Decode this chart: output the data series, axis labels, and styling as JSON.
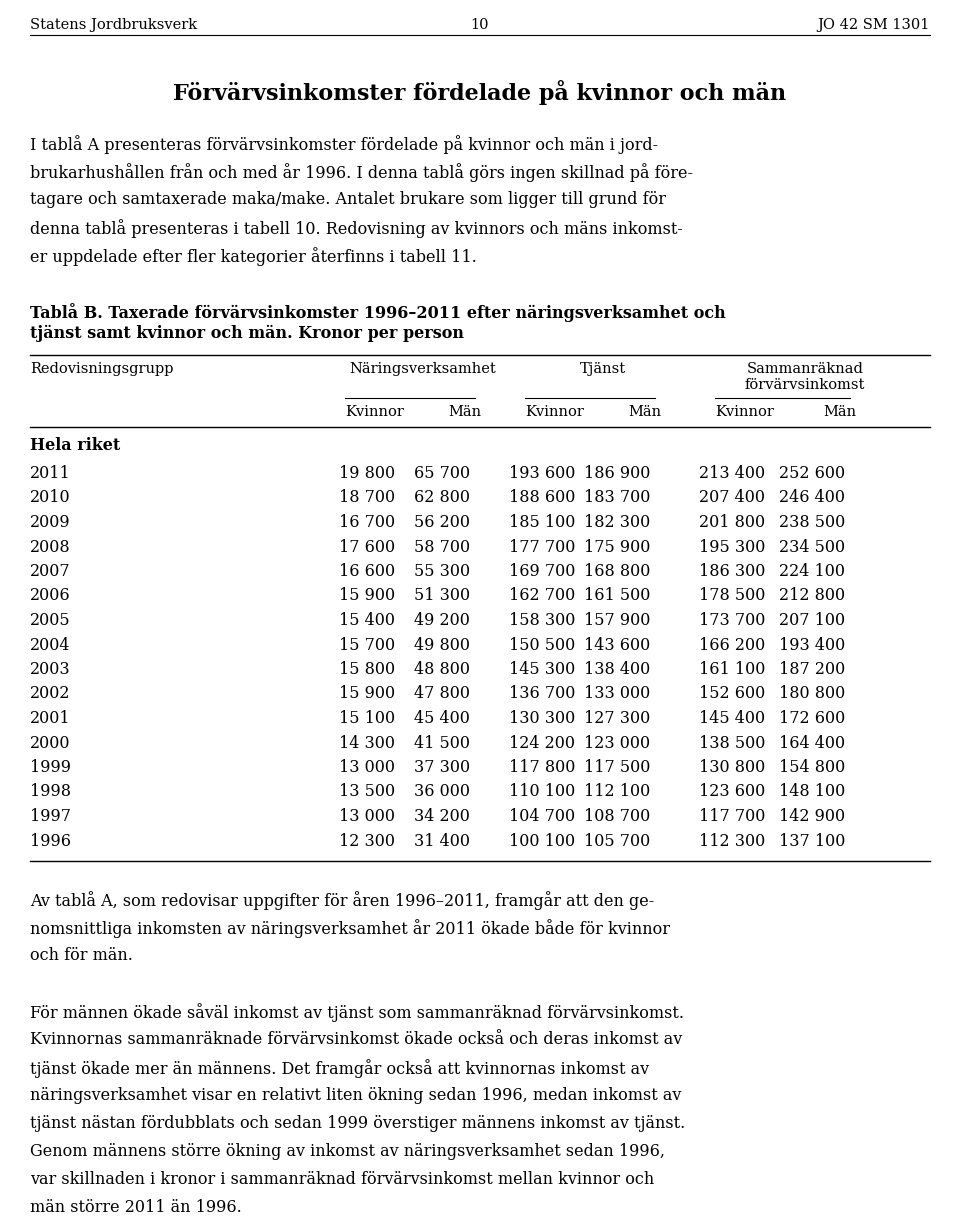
{
  "header_left": "Statens Jordbruksverk",
  "header_center": "10",
  "header_right": "JO 42 SM 1301",
  "main_title": "Förvärvsinkomster fördelade på kvinnor och män",
  "intro_text": [
    "I tablå A presenteras förvärvsinkomster fördelade på kvinnor och män i jord-",
    "brukarhushållen från och med år 1996. I denna tablå görs ingen skillnad på före-",
    "tagare och samtaxerade maka/make. Antalet brukare som ligger till grund för",
    "denna tablå presenteras i tabell 10. Redovisning av kvinnors och mäns inkomst-",
    "er uppdelade efter fler kategorier återfinns i tabell 11."
  ],
  "table_title_line1": "Tablå B. Taxerade förvärvsinkomster 1996–2011 efter näringsverksamhet och",
  "table_title_line2": "tjänst samt kvinnor och män. Kronor per person",
  "col_header1": "Redovisningsgrupp",
  "col_header2": "Näringsverksamhet",
  "col_header3": "Tjänst",
  "col_header4a": "Sammanräknad",
  "col_header4b": "förvärvsinkomst",
  "section_label": "Hela riket",
  "years": [
    2011,
    2010,
    2009,
    2008,
    2007,
    2006,
    2005,
    2004,
    2003,
    2002,
    2001,
    2000,
    1999,
    1998,
    1997,
    1996
  ],
  "data": [
    [
      19800,
      65700,
      193600,
      186900,
      213400,
      252600
    ],
    [
      18700,
      62800,
      188600,
      183700,
      207400,
      246400
    ],
    [
      16700,
      56200,
      185100,
      182300,
      201800,
      238500
    ],
    [
      17600,
      58700,
      177700,
      175900,
      195300,
      234500
    ],
    [
      16600,
      55300,
      169700,
      168800,
      186300,
      224100
    ],
    [
      15900,
      51300,
      162700,
      161500,
      178500,
      212800
    ],
    [
      15400,
      49200,
      158300,
      157900,
      173700,
      207100
    ],
    [
      15700,
      49800,
      150500,
      143600,
      166200,
      193400
    ],
    [
      15800,
      48800,
      145300,
      138400,
      161100,
      187200
    ],
    [
      15900,
      47800,
      136700,
      133000,
      152600,
      180800
    ],
    [
      15100,
      45400,
      130300,
      127300,
      145400,
      172600
    ],
    [
      14300,
      41500,
      124200,
      123000,
      138500,
      164400
    ],
    [
      13000,
      37300,
      117800,
      117500,
      130800,
      154800
    ],
    [
      13500,
      36000,
      110100,
      112100,
      123600,
      148100
    ],
    [
      13000,
      34200,
      104700,
      108700,
      117700,
      142900
    ],
    [
      12300,
      31400,
      100100,
      105700,
      112300,
      137100
    ]
  ],
  "footer_paragraphs": [
    [
      "Av tablå A, som redovisar uppgifter för åren 1996–2011, framgår att den ge-",
      "nomsnittliga inkomsten av näringsverksamhet år 2011 ökade både för kvinnor",
      "och för män."
    ],
    [
      "För männen ökade såväl inkomst av tjänst som sammanräknad förvärvsinkomst.",
      "Kvinnornas sammanräknade förvärvsinkomst ökade också och deras inkomst av",
      "tjänst ökade mer än männens. Det framgår också att kvinnornas inkomst av",
      "näringsverksamhet visar en relativt liten ökning sedan 1996, medan inkomst av",
      "tjänst nästan fördubblats och sedan 1999 överstiger männens inkomst av tjänst.",
      "Genom männens större ökning av inkomst av näringsverksamhet sedan 1996,",
      "var skillnaden i kronor i sammanräknad förvärvsinkomst mellan kvinnor och",
      "män större 2011 än 1996."
    ]
  ]
}
